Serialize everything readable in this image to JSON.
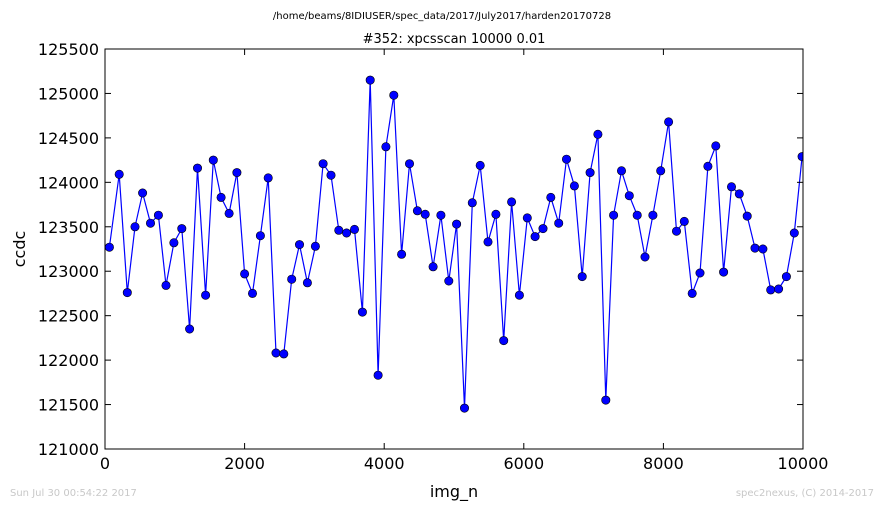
{
  "figure": {
    "suptitle": "/home/beams/8IDIUSER/spec_data/2017/July2017/harden20170728",
    "footer_left": "Sun Jul 30 00:54:22 2017",
    "footer_right": "spec2nexus, (C) 2014-2017"
  },
  "chart_data": {
    "type": "line",
    "title": "#352: xpcsscan 10000 0.01",
    "xlabel": "img_n",
    "ylabel": "ccdc",
    "xlim": [
      0,
      10000
    ],
    "ylim": [
      121000,
      125500
    ],
    "xticks": [
      "0",
      "2000",
      "4000",
      "6000",
      "8000",
      "10000"
    ],
    "yticks": [
      "121000",
      "121500",
      "122000",
      "122500",
      "123000",
      "123500",
      "124000",
      "124500",
      "125000",
      "125500"
    ],
    "grid": false,
    "legend": "none",
    "line_color": "#0000ff",
    "marker": "circle",
    "series": [
      {
        "x": [
          63,
          203,
          319,
          430,
          539,
          652,
          765,
          874,
          987,
          1100,
          1212,
          1325,
          1441,
          1551,
          1664,
          1778,
          1889,
          2000,
          2113,
          2226,
          2338,
          2450,
          2562,
          2675,
          2787,
          2900,
          3014,
          3125,
          3238,
          3350,
          3462,
          3575,
          3688,
          3800,
          3912,
          4025,
          4137,
          4250,
          4362,
          4475,
          4587,
          4700,
          4812,
          4925,
          5037,
          5150,
          5262,
          5375,
          5487,
          5600,
          5712,
          5825,
          5937,
          6050,
          6162,
          6275,
          6387,
          6500,
          6612,
          6725,
          6837,
          6950,
          7062,
          7175,
          7287,
          7400,
          7512,
          7625,
          7737,
          7850,
          7962,
          8075,
          8187,
          8300,
          8412,
          8525,
          8637,
          8750,
          8862,
          8975,
          9087,
          9200,
          9312,
          9425,
          9537,
          9650,
          9762,
          9875,
          9987
        ],
        "y": [
          123270,
          124090,
          122760,
          123500,
          123880,
          123540,
          123630,
          122840,
          123320,
          123480,
          122350,
          124160,
          122730,
          124250,
          123830,
          123650,
          124110,
          122970,
          122750,
          123400,
          124050,
          122080,
          122070,
          122910,
          123300,
          122870,
          123280,
          124210,
          124080,
          123460,
          123430,
          123470,
          122540,
          125150,
          121830,
          124400,
          124980,
          123190,
          124210,
          123680,
          123640,
          123050,
          123630,
          122890,
          123530,
          121460,
          123770,
          124190,
          123330,
          123640,
          122220,
          123780,
          122730,
          123600,
          123390,
          123480,
          123830,
          123540,
          124260,
          123960,
          122940,
          124110,
          124540,
          121550,
          123630,
          124130,
          123850,
          123630,
          123160,
          123630,
          124130,
          124680,
          123450,
          123560,
          122750,
          122980,
          124180,
          124410,
          122990,
          123950,
          123870,
          123620,
          123260,
          123250,
          122790,
          122800,
          122940,
          123430,
          124290
        ]
      }
    ]
  }
}
